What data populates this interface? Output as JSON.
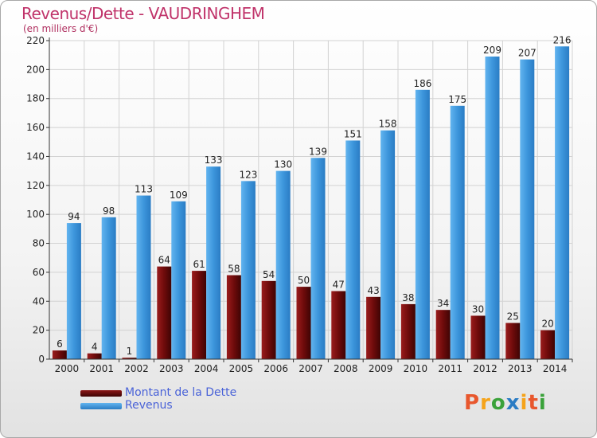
{
  "header": {
    "title": "Revenus/Dette - VAUDRINGHEM",
    "unit": "(en milliers d'€)"
  },
  "logo": {
    "text": "Proxiti"
  },
  "chart_data": {
    "type": "bar",
    "categories": [
      "2000",
      "2001",
      "2002",
      "2003",
      "2004",
      "2005",
      "2006",
      "2007",
      "2008",
      "2009",
      "2010",
      "2011",
      "2012",
      "2013",
      "2014"
    ],
    "series": [
      {
        "name": "Montant de la Dette",
        "color": "#6b0a0a",
        "values": [
          6,
          4,
          1,
          64,
          61,
          58,
          54,
          50,
          47,
          43,
          38,
          34,
          30,
          25,
          20
        ]
      },
      {
        "name": "Revenus",
        "color": "#3d96dc",
        "values": [
          94,
          98,
          113,
          109,
          133,
          123,
          130,
          139,
          151,
          158,
          186,
          175,
          209,
          207,
          216
        ]
      }
    ],
    "yticks": [
      0,
      20,
      40,
      60,
      80,
      100,
      120,
      140,
      160,
      180,
      200,
      220
    ],
    "ylim": [
      0,
      220
    ],
    "grid": true,
    "legend": "bottom-left"
  }
}
